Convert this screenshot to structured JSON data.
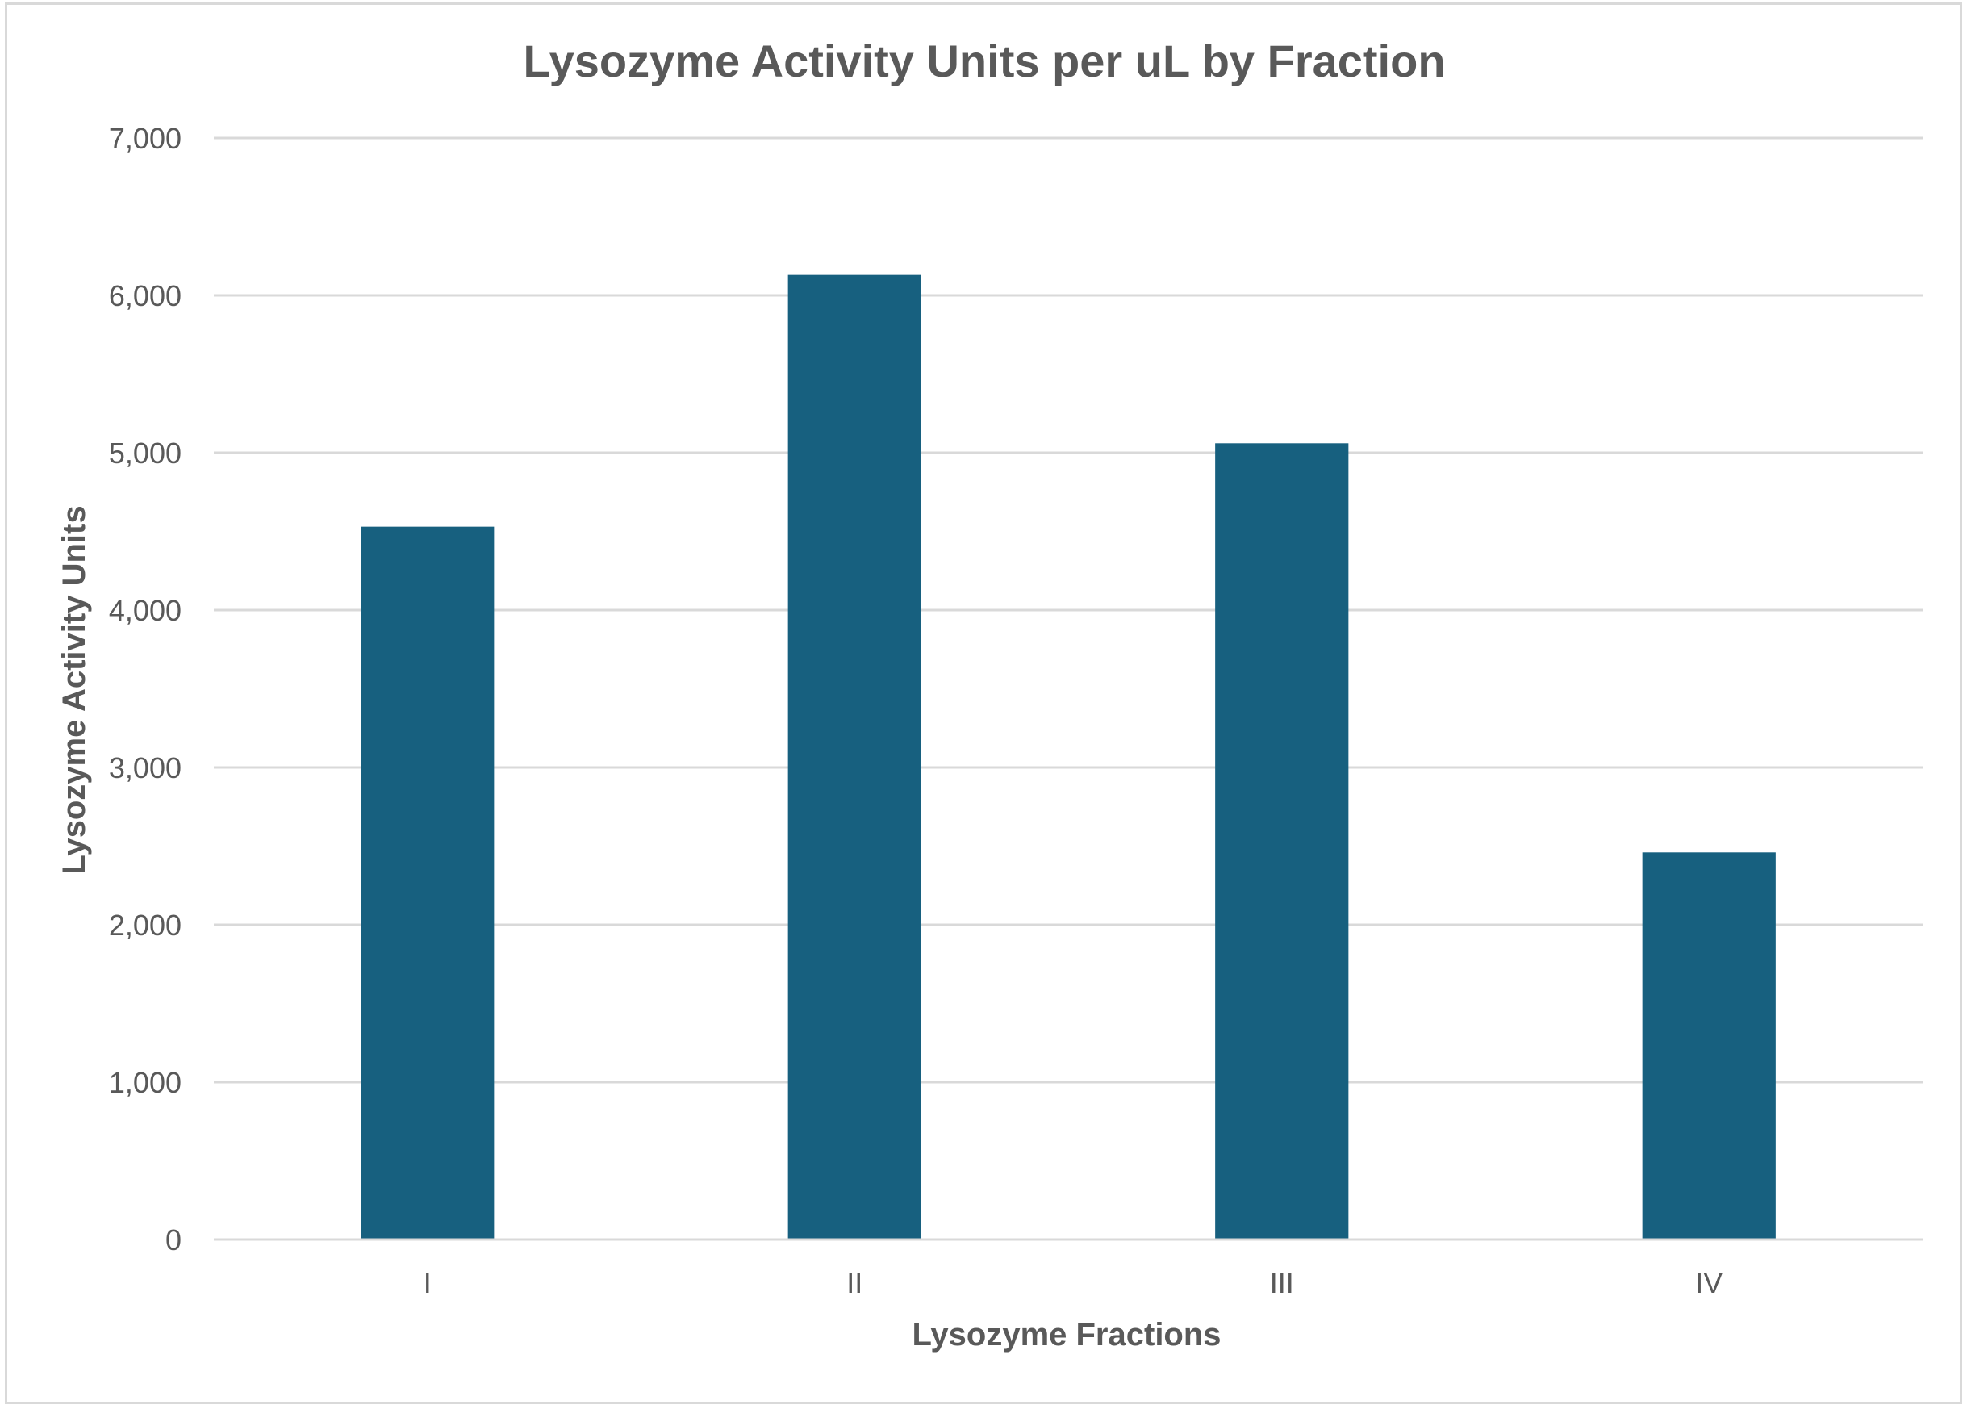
{
  "chart_data": {
    "type": "bar",
    "title": "Lysozyme Activity Units per uL by Fraction",
    "xlabel": "Lysozyme Fractions",
    "ylabel": "Lysozyme Activity Units",
    "categories": [
      "I",
      "II",
      "III",
      "IV"
    ],
    "values": [
      4530,
      6130,
      5060,
      2460
    ],
    "ylim": [
      0,
      7000
    ],
    "yticks": [
      0,
      1000,
      2000,
      3000,
      4000,
      5000,
      6000,
      7000
    ],
    "ytick_labels": [
      "0",
      "1,000",
      "2,000",
      "3,000",
      "4,000",
      "5,000",
      "6,000",
      "7,000"
    ],
    "grid": true,
    "legend": "none",
    "bar_color": "#17607f"
  }
}
